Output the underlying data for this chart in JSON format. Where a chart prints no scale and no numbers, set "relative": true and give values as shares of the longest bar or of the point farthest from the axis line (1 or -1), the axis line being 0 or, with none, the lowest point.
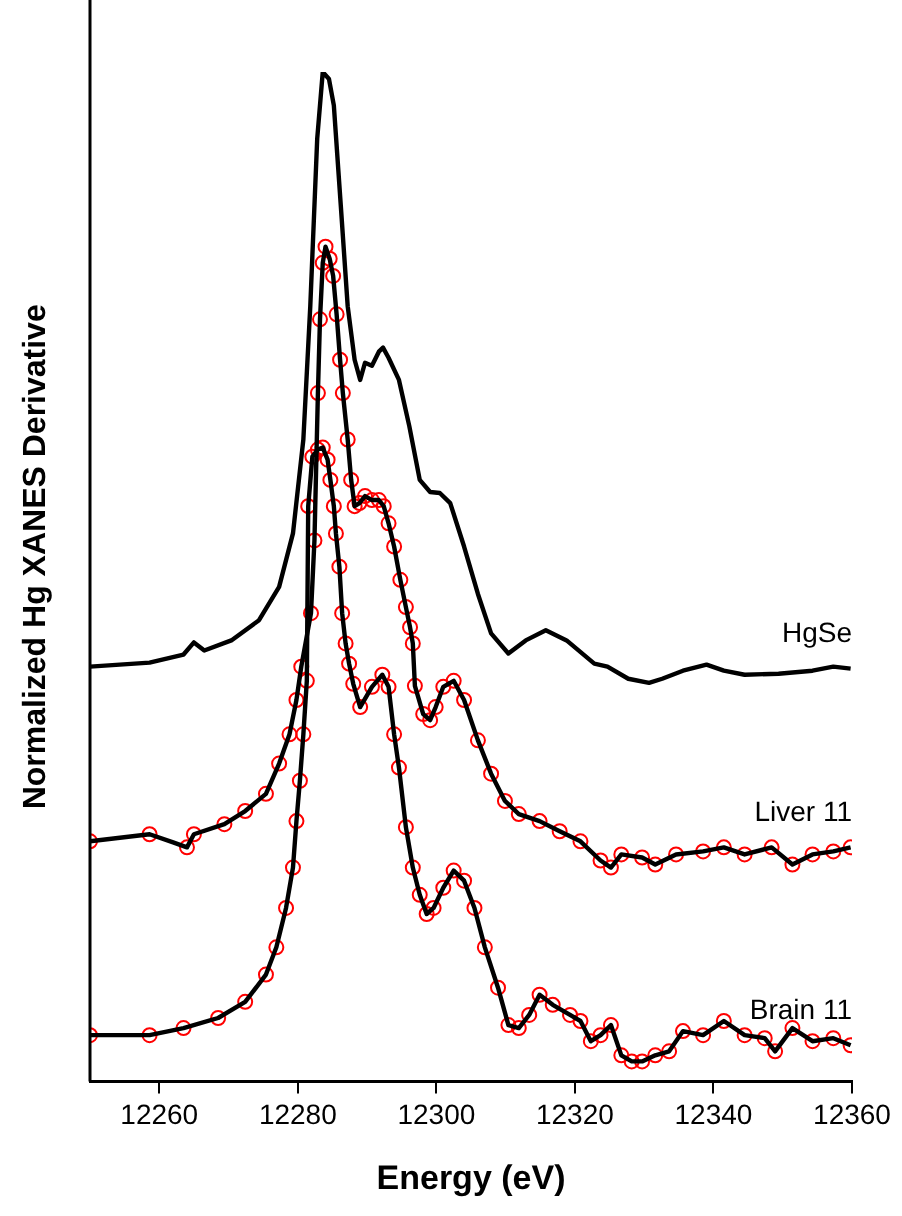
{
  "chart_data": {
    "type": "line",
    "xlabel": "Energy (eV)",
    "ylabel": "Normalized Hg XANES Derivative",
    "relative": true,
    "xlim": [
      12250,
      12360
    ],
    "xticks": [
      12260,
      12280,
      12300,
      12320,
      12340,
      12360
    ],
    "series": [
      {
        "name": "HgSe",
        "type": "line",
        "color": "#000000",
        "marker": "none",
        "x": [
          12250,
          12258.6,
          12263.5,
          12265,
          12266.5,
          12270.4,
          12274.4,
          12277.3,
          12279.3,
          12280.8,
          12281.8,
          12282.8,
          12283.6,
          12284.5,
          12285.2,
          12286.2,
          12287.2,
          12288.2,
          12289,
          12289.7,
          12290.7,
          12291.7,
          12292.3,
          12293.1,
          12294.6,
          12296.1,
          12297.6,
          12299.1,
          12300.5,
          12302,
          12304,
          12306,
          12307.9,
          12310.4,
          12312.9,
          12315.8,
          12318.8,
          12322.8,
          12324.7,
          12327.7,
          12330.7,
          12332.6,
          12335.6,
          12339,
          12341.5,
          12344.5,
          12349.4,
          12354.3,
          12357.3,
          12359.8
        ],
        "values": [
          0.411,
          0.415,
          0.423,
          0.435,
          0.427,
          0.437,
          0.457,
          0.49,
          0.543,
          0.636,
          0.768,
          0.934,
          1,
          0.993,
          0.967,
          0.868,
          0.768,
          0.715,
          0.695,
          0.712,
          0.709,
          0.723,
          0.727,
          0.717,
          0.695,
          0.649,
          0.596,
          0.584,
          0.583,
          0.573,
          0.53,
          0.483,
          0.444,
          0.424,
          0.437,
          0.447,
          0.437,
          0.414,
          0.411,
          0.399,
          0.395,
          0.399,
          0.407,
          0.413,
          0.407,
          0.403,
          0.404,
          0.407,
          0.411,
          0.409
        ]
      },
      {
        "name": "Liver 11",
        "type": "line",
        "color": "#000000",
        "marker": "none",
        "x": [
          12250,
          12258.6,
          12262,
          12264,
          12265,
          12269.4,
          12272.4,
          12275.4,
          12277.3,
          12278.8,
          12279.8,
          12280.5,
          12281.9,
          12282.4,
          12282.9,
          12283.2,
          12283.6,
          12284,
          12284.6,
          12285.1,
          12285.6,
          12286.1,
          12286.5,
          12287.2,
          12287.7,
          12288.2,
          12288.9,
          12289.7,
          12290.7,
          12291.7,
          12292.4,
          12293.1,
          12293.9,
          12294.8,
          12295.6,
          12296.2,
          12296.6,
          12296.9,
          12298.1,
          12299.1,
          12299.9,
          12301,
          12302.5,
          12304,
          12306,
          12307.9,
          12309.9,
          12311.9,
          12314.9,
          12317.8,
          12320.8,
          12323.7,
          12325.2,
          12326.7,
          12329.7,
          12331.6,
          12334.6,
          12338.5,
          12341.5,
          12344.5,
          12348.4,
          12351.4,
          12354.3,
          12357.3,
          12359.8
        ],
        "values": [
          0.238,
          0.245,
          0.237,
          0.232,
          0.245,
          0.255,
          0.268,
          0.285,
          0.315,
          0.344,
          0.378,
          0.411,
          0.464,
          0.536,
          0.682,
          0.755,
          0.811,
          0.827,
          0.815,
          0.798,
          0.76,
          0.715,
          0.682,
          0.636,
          0.596,
          0.57,
          0.573,
          0.58,
          0.576,
          0.576,
          0.57,
          0.553,
          0.53,
          0.497,
          0.47,
          0.45,
          0.434,
          0.392,
          0.364,
          0.358,
          0.371,
          0.391,
          0.397,
          0.378,
          0.338,
          0.305,
          0.278,
          0.265,
          0.258,
          0.248,
          0.238,
          0.219,
          0.212,
          0.225,
          0.222,
          0.215,
          0.225,
          0.228,
          0.232,
          0.225,
          0.232,
          0.215,
          0.225,
          0.228,
          0.232
        ]
      },
      {
        "type": "scatter",
        "color": "#ff0000",
        "marker": "circle",
        "x": [
          12250,
          12258.6,
          12264,
          12265,
          12269.4,
          12272.4,
          12275.4,
          12277.3,
          12278.8,
          12279.8,
          12280.5,
          12281.9,
          12282.4,
          12282.9,
          12283.2,
          12283.6,
          12284,
          12284.6,
          12285.1,
          12285.6,
          12286.1,
          12286.5,
          12287.2,
          12287.7,
          12288.2,
          12288.9,
          12289.7,
          12290.7,
          12291.7,
          12292.4,
          12293.1,
          12293.9,
          12294.8,
          12295.6,
          12296.2,
          12296.6,
          12296.9,
          12298.1,
          12299.1,
          12299.9,
          12301,
          12302.5,
          12304,
          12306,
          12307.9,
          12309.9,
          12311.9,
          12314.9,
          12317.8,
          12320.8,
          12323.7,
          12325.2,
          12326.7,
          12329.7,
          12331.6,
          12334.6,
          12338.5,
          12341.5,
          12344.5,
          12348.4,
          12351.4,
          12354.3,
          12357.3,
          12359.8
        ],
        "values": [
          0.238,
          0.245,
          0.232,
          0.245,
          0.255,
          0.268,
          0.285,
          0.315,
          0.344,
          0.378,
          0.411,
          0.464,
          0.536,
          0.682,
          0.755,
          0.811,
          0.827,
          0.815,
          0.798,
          0.76,
          0.715,
          0.682,
          0.636,
          0.596,
          0.57,
          0.573,
          0.58,
          0.576,
          0.576,
          0.57,
          0.553,
          0.53,
          0.497,
          0.47,
          0.45,
          0.434,
          0.392,
          0.364,
          0.358,
          0.371,
          0.391,
          0.397,
          0.378,
          0.338,
          0.305,
          0.278,
          0.265,
          0.258,
          0.248,
          0.238,
          0.219,
          0.212,
          0.225,
          0.222,
          0.215,
          0.225,
          0.228,
          0.232,
          0.225,
          0.232,
          0.215,
          0.225,
          0.228,
          0.232
        ]
      },
      {
        "name": "Brain 11",
        "type": "line",
        "color": "#000000",
        "marker": "none",
        "x": [
          12250,
          12258.6,
          12263.5,
          12268.5,
          12272.4,
          12275.4,
          12276.9,
          12278.3,
          12279.3,
          12279.8,
          12280.3,
          12280.8,
          12281.3,
          12281.5,
          12282.1,
          12282.9,
          12283.6,
          12284.3,
          12284.7,
          12285.2,
          12285.5,
          12286,
          12286.4,
          12286.9,
          12287.4,
          12288,
          12289,
          12290.7,
          12292.2,
          12293.1,
          12293.9,
          12294.6,
          12295.6,
          12296.6,
          12297.6,
          12298.6,
          12299.6,
          12301,
          12302.5,
          12304,
          12305.5,
          12307,
          12308.9,
          12310.4,
          12311.9,
          12313.4,
          12314.9,
          12316.8,
          12319.3,
          12320.8,
          12322.3,
          12323.7,
          12325.2,
          12326.7,
          12328.2,
          12329.7,
          12331.6,
          12333.6,
          12335.6,
          12338.5,
          12341.5,
          12344.5,
          12347.4,
          12348.9,
          12351.4,
          12354.3,
          12357.3,
          12359.8
        ],
        "values": [
          0.046,
          0.046,
          0.053,
          0.063,
          0.079,
          0.106,
          0.133,
          0.172,
          0.212,
          0.258,
          0.298,
          0.344,
          0.397,
          0.57,
          0.619,
          0.626,
          0.628,
          0.616,
          0.596,
          0.57,
          0.543,
          0.51,
          0.464,
          0.434,
          0.414,
          0.394,
          0.371,
          0.391,
          0.403,
          0.391,
          0.344,
          0.311,
          0.252,
          0.212,
          0.185,
          0.166,
          0.172,
          0.192,
          0.209,
          0.199,
          0.172,
          0.133,
          0.093,
          0.056,
          0.053,
          0.066,
          0.086,
          0.076,
          0.066,
          0.06,
          0.04,
          0.046,
          0.056,
          0.026,
          0.02,
          0.02,
          0.026,
          0.03,
          0.05,
          0.046,
          0.06,
          0.046,
          0.043,
          0.03,
          0.053,
          0.04,
          0.043,
          0.036
        ]
      },
      {
        "type": "scatter",
        "color": "#ff0000",
        "marker": "circle",
        "x": [
          12250,
          12258.6,
          12263.5,
          12268.5,
          12272.4,
          12275.4,
          12276.9,
          12278.3,
          12279.3,
          12279.8,
          12280.3,
          12280.8,
          12281.3,
          12281.5,
          12282.1,
          12282.9,
          12283.6,
          12284.3,
          12284.7,
          12285.2,
          12285.5,
          12286,
          12286.4,
          12286.9,
          12287.4,
          12288,
          12289,
          12290.7,
          12292.2,
          12293.1,
          12293.9,
          12294.6,
          12295.6,
          12296.6,
          12297.6,
          12298.6,
          12299.6,
          12301,
          12302.5,
          12304,
          12305.5,
          12307,
          12308.9,
          12310.4,
          12311.9,
          12313.4,
          12314.9,
          12316.8,
          12319.3,
          12320.8,
          12322.3,
          12323.7,
          12325.2,
          12326.7,
          12328.2,
          12329.7,
          12331.6,
          12333.6,
          12335.6,
          12338.5,
          12341.5,
          12344.5,
          12347.4,
          12348.9,
          12351.4,
          12354.3,
          12357.3,
          12359.8
        ],
        "values": [
          0.046,
          0.046,
          0.053,
          0.063,
          0.079,
          0.106,
          0.133,
          0.172,
          0.212,
          0.258,
          0.298,
          0.344,
          0.397,
          0.57,
          0.619,
          0.626,
          0.628,
          0.616,
          0.596,
          0.57,
          0.543,
          0.51,
          0.464,
          0.434,
          0.414,
          0.394,
          0.371,
          0.391,
          0.403,
          0.391,
          0.344,
          0.311,
          0.252,
          0.212,
          0.185,
          0.166,
          0.172,
          0.192,
          0.209,
          0.199,
          0.172,
          0.133,
          0.093,
          0.056,
          0.053,
          0.066,
          0.086,
          0.076,
          0.066,
          0.06,
          0.04,
          0.046,
          0.056,
          0.026,
          0.02,
          0.02,
          0.026,
          0.03,
          0.05,
          0.046,
          0.06,
          0.046,
          0.043,
          0.03,
          0.053,
          0.04,
          0.043,
          0.036
        ]
      }
    ]
  }
}
